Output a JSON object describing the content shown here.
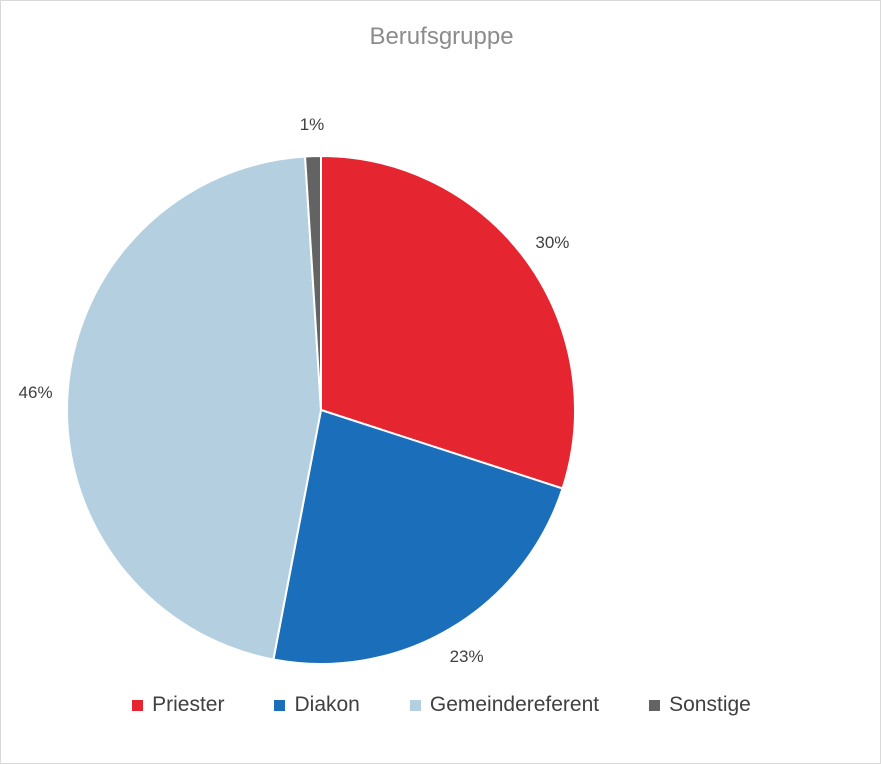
{
  "chart_data": {
    "type": "pie",
    "title": "Berufsgruppe",
    "legend_position": "bottom",
    "slices": [
      {
        "name": "Priester",
        "value": 30,
        "label": "30%",
        "color": "#e52630"
      },
      {
        "name": "Diakon",
        "value": 23,
        "label": "23%",
        "color": "#1b6fba"
      },
      {
        "name": "Gemeindereferent",
        "value": 46,
        "label": "46%",
        "color": "#b4cfe0"
      },
      {
        "name": "Sonstige",
        "value": 1,
        "label": "1%",
        "color": "#636363"
      }
    ]
  }
}
